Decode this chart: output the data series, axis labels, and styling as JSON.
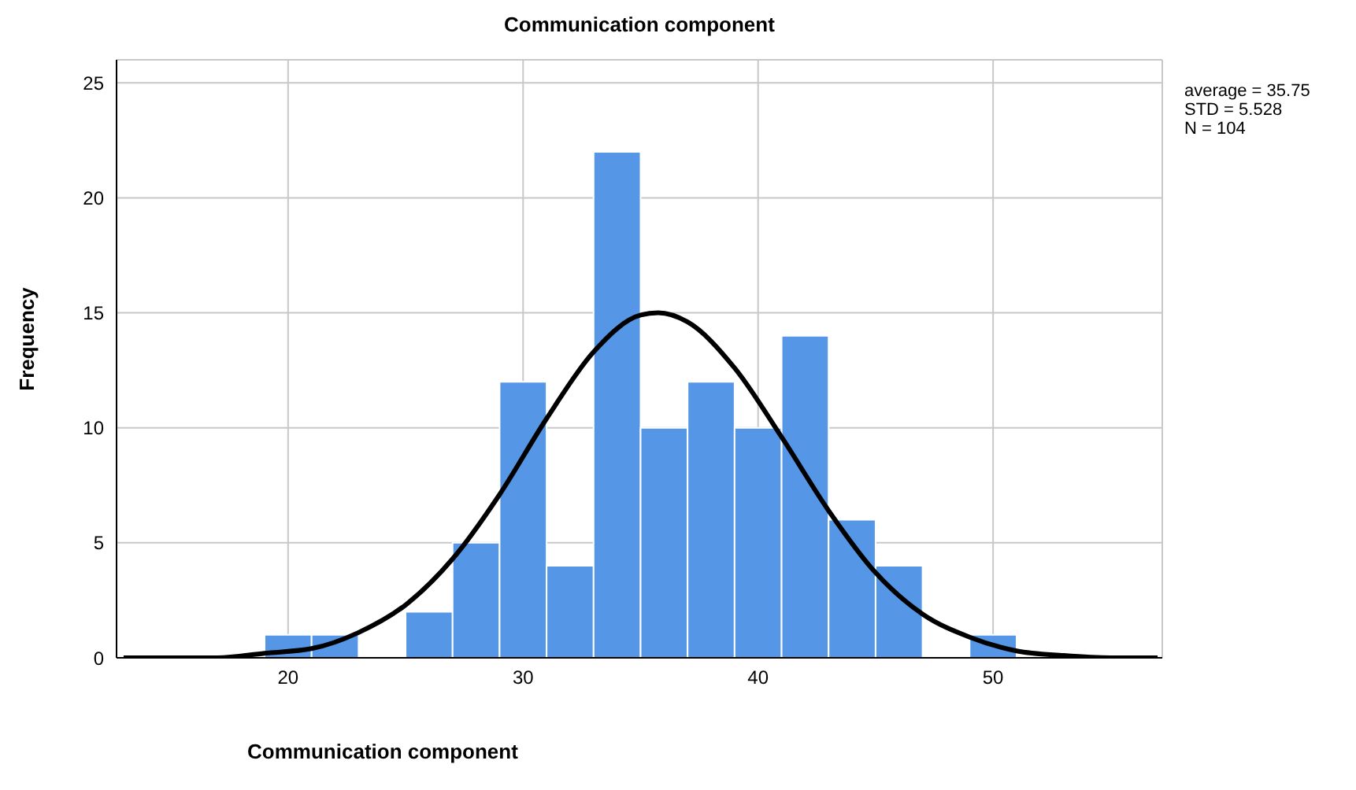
{
  "chart_data": {
    "type": "histogram",
    "title": "Communication component",
    "xlabel": "Communication component",
    "ylabel": "Frequency",
    "bins": [
      19,
      21,
      23,
      25,
      27,
      29,
      31,
      33,
      35,
      37,
      39,
      41,
      43,
      45,
      47,
      49,
      51
    ],
    "values": [
      1,
      1,
      0,
      2,
      5,
      12,
      4,
      22,
      10,
      12,
      10,
      14,
      6,
      4,
      0,
      1
    ],
    "color": "#5596e6",
    "series": [
      {
        "type": "line",
        "color": "#000000",
        "x": [
          13,
          15,
          17,
          19,
          21,
          23,
          25,
          27,
          29,
          31,
          33,
          35,
          35.75,
          37,
          39,
          41,
          43,
          45,
          47,
          49,
          51,
          53,
          55,
          57
        ],
        "values": [
          0,
          0,
          0,
          0.2,
          0.4,
          1.1,
          2.3,
          4.3,
          7.1,
          10.4,
          13.3,
          14.9,
          15,
          14.6,
          12.6,
          9.6,
          6.4,
          3.7,
          1.9,
          0.9,
          0.3,
          0.1,
          0,
          0
        ]
      }
    ],
    "xlim": [
      12.7,
      57.2
    ],
    "xticks": [
      20,
      30,
      40,
      50
    ],
    "ylim": [
      0,
      26
    ],
    "yticks": [
      0,
      5,
      10,
      15,
      20,
      25
    ],
    "grid": true,
    "annotations": [
      "average = 35.75",
      "STD = 5.528",
      "N = 104"
    ]
  }
}
